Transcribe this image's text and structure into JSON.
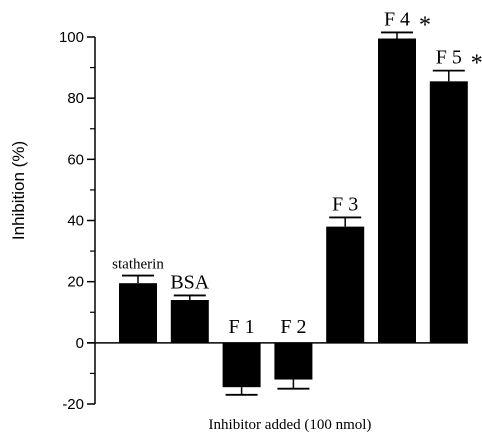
{
  "chart_data": {
    "type": "bar",
    "categories": [
      "statherin",
      "BSA",
      "F 1",
      "F 2",
      "F 3",
      "F 4",
      "F 5"
    ],
    "values": [
      19.5,
      14,
      -14.5,
      -12,
      38,
      99.5,
      85.5
    ],
    "error": [
      2.5,
      1.5,
      2.5,
      3,
      3,
      2,
      3.5
    ],
    "significant": [
      false,
      false,
      false,
      false,
      false,
      true,
      true
    ],
    "marker": "*",
    "xlabel": "Inhibitor added (100 nmol)",
    "ylabel": "Inhibition (%)",
    "ylim": [
      -20,
      100
    ],
    "yticks": [
      -20,
      0,
      20,
      40,
      60,
      80,
      100
    ],
    "ytick_labels": [
      "-20",
      "0",
      "20",
      "40",
      "60",
      "80",
      "100"
    ],
    "grid": false,
    "bar_color": "#000000"
  }
}
